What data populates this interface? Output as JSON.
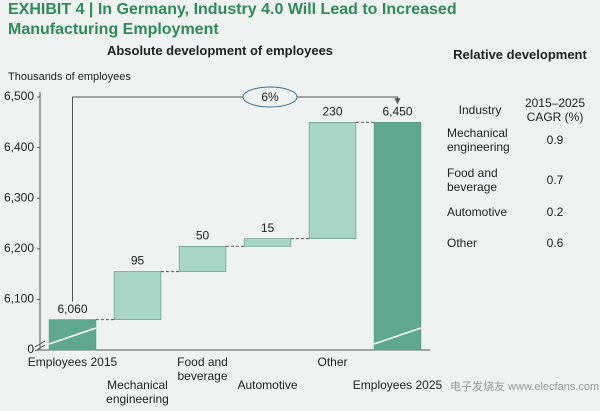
{
  "chart_data": {
    "type": "waterfall",
    "title": "EXHIBIT 4 | In Germany, Industry 4.0 Will Lead to Increased Manufacturing Employment",
    "subtitle": "Absolute development of employees",
    "ylabel": "Thousands of employees",
    "categories": [
      "Employees 2015",
      "Mechanical engineering",
      "Food and beverage",
      "Automotive",
      "Other",
      "Employees 2025"
    ],
    "values": [
      6060,
      95,
      50,
      15,
      230,
      6450
    ],
    "value_labels": [
      "6,060",
      "95",
      "50",
      "15",
      "230",
      "6,450"
    ],
    "colors": [
      "#5fa88f",
      "#a9d5c6",
      "#a9d5c6",
      "#a9d5c6",
      "#a9d5c6",
      "#5fa88f"
    ],
    "ylim": [
      6000,
      6500
    ],
    "yticks": [
      {
        "value": 0,
        "label": "0"
      },
      {
        "value": 6100,
        "label": "6,100"
      },
      {
        "value": 6200,
        "label": "6,200"
      },
      {
        "value": 6300,
        "label": "6,300"
      },
      {
        "value": 6400,
        "label": "6,400"
      },
      {
        "value": 6500,
        "label": "6,500"
      }
    ],
    "axis_break": true,
    "annotation": "6%"
  },
  "table": {
    "title": "Relative development",
    "headers": [
      "Industry",
      "2015–2025 CAGR (%)"
    ],
    "rows": [
      [
        "Mechanical engineering",
        "0.9"
      ],
      [
        "Food and beverage",
        "0.7"
      ],
      [
        "Automotive",
        "0.2"
      ],
      [
        "Other",
        "0.6"
      ]
    ]
  },
  "watermark": "电子发烧友 www.elecfans.com"
}
